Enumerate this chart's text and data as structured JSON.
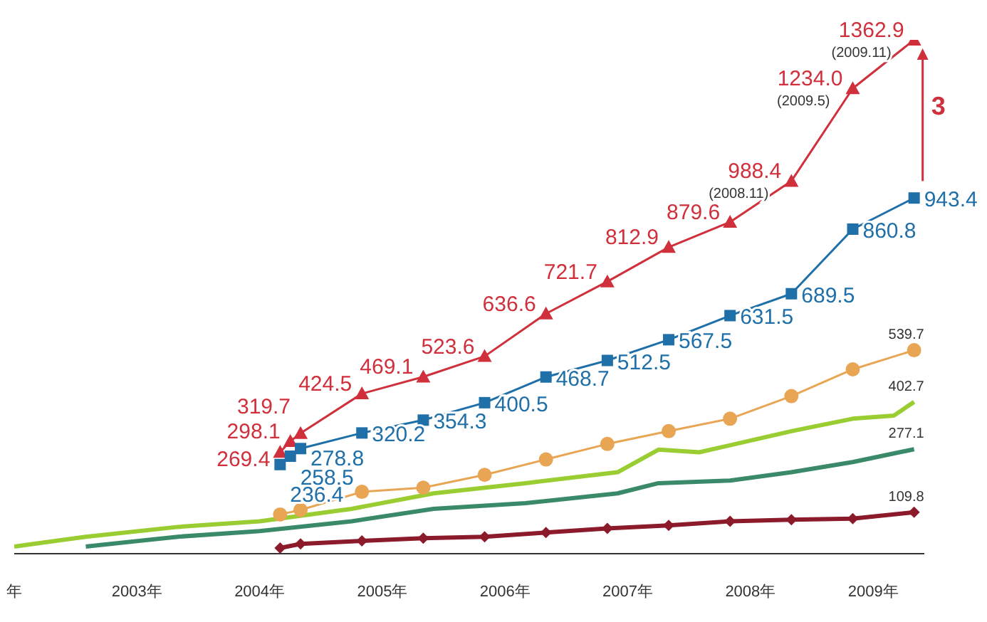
{
  "chart_data": {
    "type": "line",
    "xlim": [
      "2002-07",
      "2009-12"
    ],
    "xticks": [
      {
        "value": "2002-07",
        "label": "年"
      },
      {
        "value": "2003-07",
        "label": "2003年"
      },
      {
        "value": "2004-07",
        "label": "2004年"
      },
      {
        "value": "2005-07",
        "label": "2005年"
      },
      {
        "value": "2006-07",
        "label": "2006年"
      },
      {
        "value": "2007-07",
        "label": "2007年"
      },
      {
        "value": "2008-07",
        "label": "2008年"
      },
      {
        "value": "2009-07",
        "label": "2009年"
      }
    ],
    "tick_labels": "x",
    "legend": false,
    "series": [
      {
        "color": "#d0303c",
        "marker": "triangle",
        "x": [
          "2004-09",
          "2004-10",
          "2004-11",
          "2005-05",
          "2005-11",
          "2006-05",
          "2006-11",
          "2007-05",
          "2007-11",
          "2008-05",
          "2008-11",
          "2009-05",
          "2009-11"
        ],
        "values": [
          269.4,
          298.1,
          319.7,
          424.5,
          469.1,
          523.6,
          636.6,
          721.7,
          812.9,
          879.6,
          988.4,
          1234.0,
          1362.9
        ],
        "value_labels": [
          "269.4",
          "298.1",
          "319.7",
          "424.5",
          "469.1",
          "523.6",
          "636.6",
          "721.7",
          "812.9",
          "879.6",
          "988.4",
          "1234.0",
          "1362.9"
        ]
      },
      {
        "color": "#1f6fa8",
        "marker": "square",
        "x": [
          "2004-09",
          "2004-10",
          "2004-11",
          "2005-05",
          "2005-11",
          "2006-05",
          "2006-11",
          "2007-05",
          "2007-11",
          "2008-05",
          "2008-11",
          "2009-05",
          "2009-11"
        ],
        "values": [
          236.4,
          258.5,
          278.8,
          320.2,
          354.3,
          400.5,
          468.7,
          512.5,
          567.5,
          631.5,
          689.5,
          860.8,
          943.4
        ],
        "value_labels": [
          "236.4",
          "258.5",
          "278.8",
          "320.2",
          "354.3",
          "400.5",
          "468.7",
          "512.5",
          "567.5",
          "631.5",
          "689.5",
          "860.8",
          "943.4"
        ]
      },
      {
        "color": "#e8a654",
        "marker": "circle",
        "x": [
          "2004-09",
          "2004-11",
          "2005-05",
          "2005-11",
          "2006-05",
          "2006-11",
          "2007-05",
          "2007-11",
          "2008-05",
          "2008-11",
          "2009-05",
          "2009-11"
        ],
        "values": [
          104,
          116,
          164,
          175,
          209,
          250,
          291,
          325,
          358,
          418,
          489,
          539.7
        ],
        "value_labels": [
          null,
          null,
          null,
          null,
          null,
          null,
          null,
          null,
          null,
          null,
          null,
          "539.7"
        ]
      },
      {
        "color": "#9acd32",
        "marker": "none",
        "x": [
          "2002-07",
          "2003-02",
          "2003-11",
          "2004-07",
          "2005-04",
          "2005-12",
          "2006-09",
          "2007-06",
          "2007-10",
          "2008-02",
          "2008-11",
          "2009-05",
          "2009-09",
          "2009-11"
        ],
        "values": [
          19,
          45,
          71,
          86,
          119,
          160,
          187,
          216,
          276,
          269,
          325,
          358,
          366,
          402.7
        ],
        "value_labels": [
          null,
          null,
          null,
          null,
          null,
          null,
          null,
          null,
          null,
          null,
          null,
          null,
          null,
          "402.7"
        ]
      },
      {
        "color": "#3a8a6a",
        "marker": "none",
        "x": [
          "2003-02",
          "2003-11",
          "2004-07",
          "2005-04",
          "2005-12",
          "2006-09",
          "2007-06",
          "2007-10",
          "2008-05",
          "2008-11",
          "2009-05",
          "2009-11"
        ],
        "values": [
          19,
          45,
          60,
          86,
          119,
          134,
          160,
          187,
          194,
          216,
          243,
          277.1
        ],
        "value_labels": [
          null,
          null,
          null,
          null,
          null,
          null,
          null,
          null,
          null,
          null,
          null,
          "277.1"
        ]
      },
      {
        "color": "#8b1a2a",
        "marker": "diamond",
        "x": [
          "2004-09",
          "2004-11",
          "2005-05",
          "2005-11",
          "2006-05",
          "2006-11",
          "2007-05",
          "2007-11",
          "2008-05",
          "2008-11",
          "2009-05",
          "2009-11"
        ],
        "values": [
          15,
          26,
          34,
          41,
          45,
          56,
          67,
          75,
          86,
          90,
          93,
          109.8
        ],
        "value_labels": [
          null,
          null,
          null,
          null,
          null,
          null,
          null,
          null,
          null,
          null,
          null,
          "109.8"
        ]
      }
    ],
    "annotations": [
      {
        "text": "(2009.11)",
        "x": "2009-11",
        "y": 1362.9
      },
      {
        "text": "(2009.5)",
        "x": "2009-05",
        "y": 1234.0
      },
      {
        "text": "(2008.11)",
        "x": "2008-11",
        "y": 988.4
      },
      "3"
    ]
  }
}
